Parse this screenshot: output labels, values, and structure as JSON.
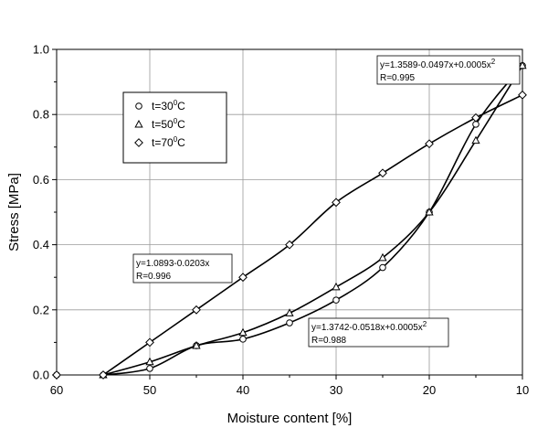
{
  "chart_data": {
    "type": "line",
    "xlabel": "Moisture content [%]",
    "ylabel": "Stress [MPa]",
    "xlim": [
      60,
      10
    ],
    "ylim": [
      0,
      1.0
    ],
    "x_ticks": [
      "60",
      "50",
      "40",
      "30",
      "20",
      "10"
    ],
    "x_tick_values": [
      60,
      50,
      40,
      30,
      20,
      10
    ],
    "y_ticks": [
      "0.0",
      "0.2",
      "0.4",
      "0.6",
      "0.8",
      "1.0"
    ],
    "y_tick_values": [
      0.0,
      0.2,
      0.4,
      0.6,
      0.8,
      1.0
    ],
    "grid": true,
    "legend_position": "upper-left",
    "series": [
      {
        "name": "t=30",
        "name_sup": "0",
        "name_unit": "C",
        "marker": "circle",
        "x": [
          60,
          55,
          50,
          45,
          40,
          35,
          30,
          25,
          20,
          15,
          10
        ],
        "y": [
          0.0,
          0.0,
          0.02,
          0.09,
          0.11,
          0.16,
          0.23,
          0.33,
          0.5,
          0.77,
          0.95
        ]
      },
      {
        "name": "t=50",
        "name_sup": "0",
        "name_unit": "C",
        "marker": "triangle",
        "x": [
          55,
          50,
          45,
          40,
          35,
          30,
          25,
          20,
          15,
          10
        ],
        "y": [
          0.0,
          0.04,
          0.09,
          0.13,
          0.19,
          0.27,
          0.36,
          0.5,
          0.72,
          0.95
        ]
      },
      {
        "name": "t=70",
        "name_sup": "0",
        "name_unit": "C",
        "marker": "diamond",
        "x": [
          60,
          55,
          50,
          45,
          40,
          35,
          30,
          25,
          20,
          15,
          10
        ],
        "y": [
          0.0,
          0.0,
          0.1,
          0.2,
          0.3,
          0.4,
          0.53,
          0.62,
          0.71,
          0.79,
          0.86
        ]
      }
    ],
    "annotations": [
      {
        "line1": "y=1.3589-0.0497x+0.0005x",
        "sup": "2",
        "line2": "R=0.995"
      },
      {
        "line1": "y=1.0893-0.0203x",
        "sup": "",
        "line2": "R=0.996"
      },
      {
        "line1": "y=1.3742-0.0518x+0.0005x",
        "sup": "2",
        "line2": "R=0.988"
      }
    ]
  }
}
